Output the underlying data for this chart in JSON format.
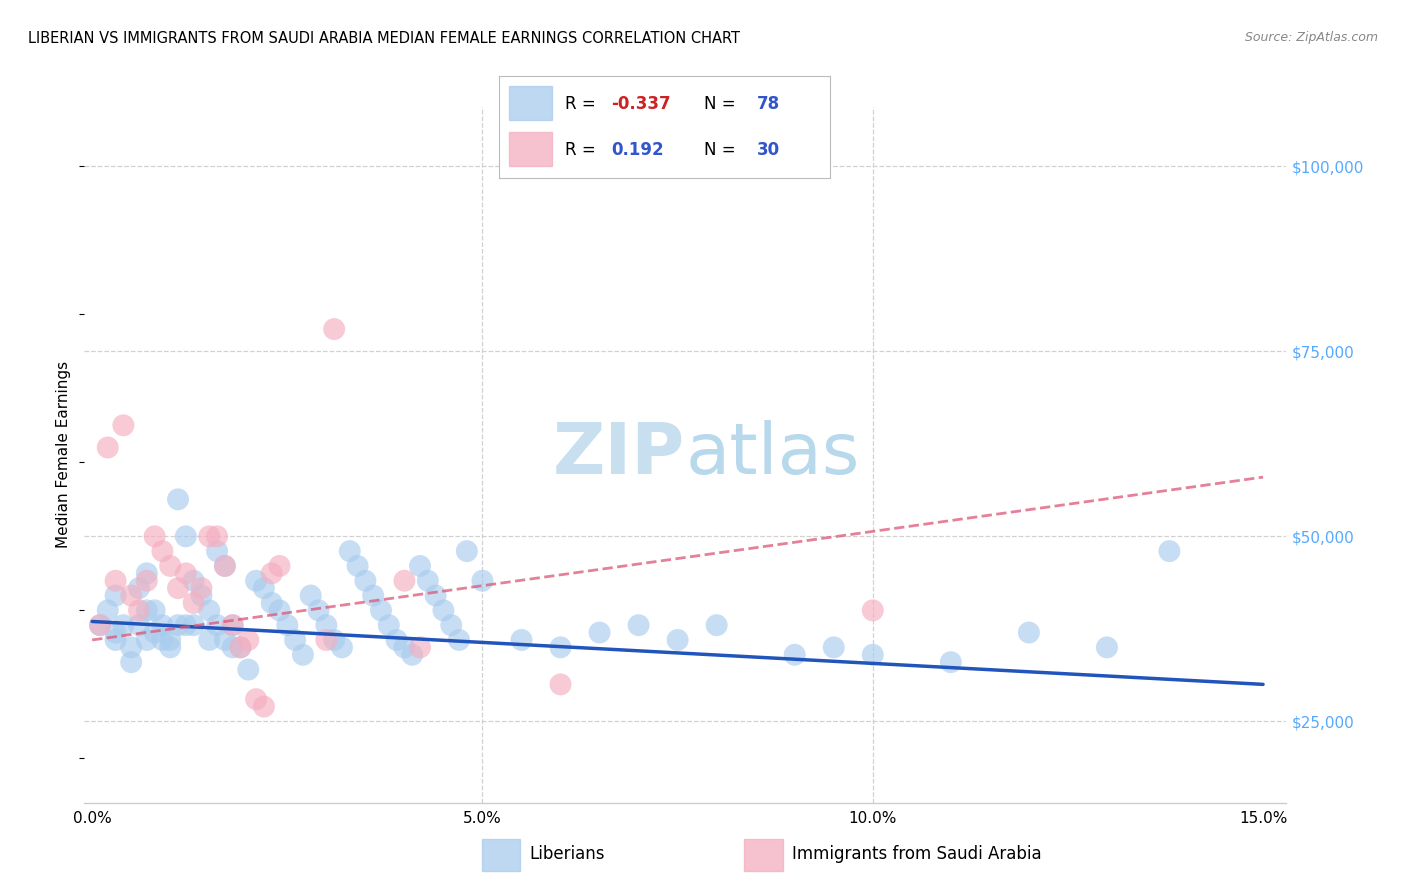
{
  "title": "LIBERIAN VS IMMIGRANTS FROM SAUDI ARABIA MEDIAN FEMALE EARNINGS CORRELATION CHART",
  "source": "Source: ZipAtlas.com",
  "ylabel": "Median Female Earnings",
  "watermark_part1": "ZIP",
  "watermark_part2": "atlas",
  "r_blue": "-0.337",
  "n_blue": "78",
  "r_pink": "0.192",
  "n_pink": "30",
  "legend_label_blue": "Liberians",
  "legend_label_pink": "Immigrants from Saudi Arabia",
  "blue_scatter_x": [
    0.001,
    0.002,
    0.003,
    0.003,
    0.003,
    0.004,
    0.005,
    0.005,
    0.006,
    0.006,
    0.007,
    0.007,
    0.007,
    0.008,
    0.008,
    0.009,
    0.009,
    0.01,
    0.01,
    0.011,
    0.011,
    0.012,
    0.012,
    0.013,
    0.013,
    0.014,
    0.015,
    0.015,
    0.016,
    0.016,
    0.017,
    0.017,
    0.018,
    0.018,
    0.019,
    0.02,
    0.021,
    0.022,
    0.023,
    0.024,
    0.025,
    0.026,
    0.027,
    0.028,
    0.029,
    0.03,
    0.031,
    0.032,
    0.033,
    0.034,
    0.035,
    0.036,
    0.037,
    0.038,
    0.039,
    0.04,
    0.041,
    0.042,
    0.043,
    0.044,
    0.045,
    0.046,
    0.047,
    0.048,
    0.05,
    0.055,
    0.06,
    0.065,
    0.07,
    0.075,
    0.08,
    0.09,
    0.095,
    0.1,
    0.11,
    0.12,
    0.13,
    0.138
  ],
  "blue_scatter_y": [
    38000,
    40000,
    42000,
    37000,
    36000,
    38000,
    35000,
    33000,
    43000,
    38000,
    45000,
    40000,
    36000,
    40000,
    37000,
    38000,
    36000,
    36000,
    35000,
    55000,
    38000,
    50000,
    38000,
    44000,
    38000,
    42000,
    40000,
    36000,
    48000,
    38000,
    46000,
    36000,
    38000,
    35000,
    35000,
    32000,
    44000,
    43000,
    41000,
    40000,
    38000,
    36000,
    34000,
    42000,
    40000,
    38000,
    36000,
    35000,
    48000,
    46000,
    44000,
    42000,
    40000,
    38000,
    36000,
    35000,
    34000,
    46000,
    44000,
    42000,
    40000,
    38000,
    36000,
    48000,
    44000,
    36000,
    35000,
    37000,
    38000,
    36000,
    38000,
    34000,
    35000,
    34000,
    33000,
    37000,
    35000,
    48000
  ],
  "pink_scatter_x": [
    0.001,
    0.002,
    0.003,
    0.004,
    0.005,
    0.006,
    0.007,
    0.008,
    0.009,
    0.01,
    0.011,
    0.012,
    0.013,
    0.014,
    0.015,
    0.016,
    0.017,
    0.018,
    0.019,
    0.02,
    0.021,
    0.022,
    0.023,
    0.024,
    0.03,
    0.031,
    0.04,
    0.042,
    0.06,
    0.1
  ],
  "pink_scatter_y": [
    38000,
    62000,
    44000,
    65000,
    42000,
    40000,
    44000,
    50000,
    48000,
    46000,
    43000,
    45000,
    41000,
    43000,
    50000,
    50000,
    46000,
    38000,
    35000,
    36000,
    28000,
    27000,
    45000,
    46000,
    36000,
    78000,
    44000,
    35000,
    30000,
    40000
  ],
  "blue_line_x": [
    0.0,
    0.15
  ],
  "blue_line_y": [
    38500,
    30000
  ],
  "pink_line_x": [
    0.0,
    0.15
  ],
  "pink_line_y": [
    36000,
    58000
  ],
  "y_ticks": [
    25000,
    50000,
    75000,
    100000
  ],
  "y_tick_labels": [
    "$25,000",
    "$50,000",
    "$75,000",
    "$100,000"
  ],
  "x_ticks": [
    0.0,
    0.05,
    0.1,
    0.15
  ],
  "xlim": [
    -0.001,
    0.153
  ],
  "ylim": [
    14000,
    108000
  ],
  "blue_dot_color": "#a8ccee",
  "pink_dot_color": "#f4aec0",
  "blue_line_color": "#2255bb",
  "pink_line_color": "#dd5577",
  "grid_color": "#cccccc",
  "background_color": "#ffffff",
  "watermark_color1": "#c8dff0",
  "watermark_color2": "#b8d8ec",
  "title_fontsize": 10.5,
  "source_fontsize": 9,
  "axis_fontsize": 11,
  "legend_fontsize": 12,
  "watermark_fontsize": 52
}
